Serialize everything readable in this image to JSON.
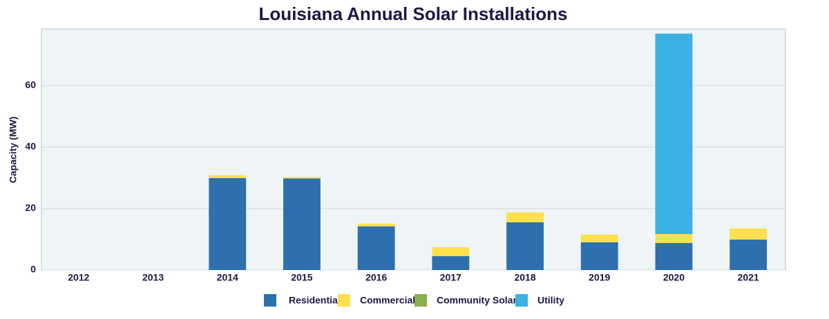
{
  "chart_data": {
    "type": "bar",
    "stacked": true,
    "title": "Louisiana Annual Solar Installations",
    "y_label": "Capacity (MW)",
    "categories": [
      "2012",
      "2013",
      "2014",
      "2015",
      "2016",
      "2017",
      "2018",
      "2019",
      "2020",
      "2021"
    ],
    "series": [
      {
        "name": "Residential",
        "color": "#2e6fad",
        "values": [
          0,
          0,
          29.9,
          29.8,
          14.2,
          4.5,
          15.5,
          9.0,
          8.8,
          9.9
        ]
      },
      {
        "name": "Commercial",
        "color": "#fde04e",
        "values": [
          0,
          0,
          0.9,
          0.4,
          0.9,
          2.9,
          3.2,
          2.5,
          2.9,
          3.6
        ]
      },
      {
        "name": "Community Solar",
        "color": "#8ab04a",
        "values": [
          0,
          0,
          0,
          0,
          0,
          0,
          0,
          0,
          0,
          0
        ]
      },
      {
        "name": "Utility",
        "color": "#3ab2e3",
        "values": [
          0,
          0,
          0,
          0,
          0,
          0,
          0,
          0,
          65.2,
          0
        ]
      }
    ],
    "ylim": [
      0,
      78.4
    ],
    "yticks": [
      0,
      20,
      40,
      60
    ],
    "grid": true,
    "legend": "bottom"
  }
}
